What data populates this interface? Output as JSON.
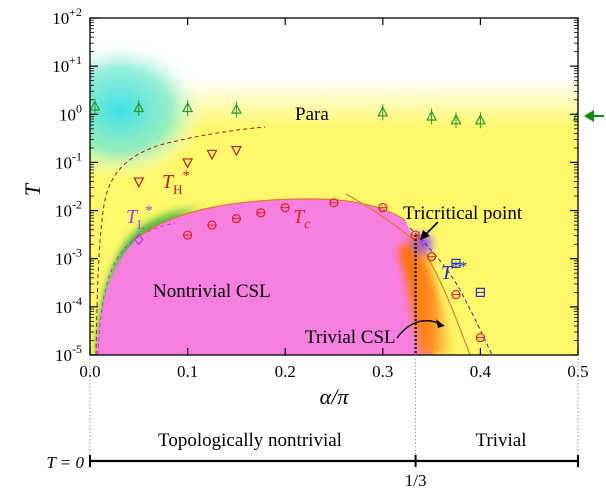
{
  "chart_data": {
    "type": "scatter",
    "xlabel": "α/π",
    "ylabel": "T",
    "xlim": [
      0,
      0.5
    ],
    "ylim_log10": [
      -5,
      2
    ],
    "yscale": "log",
    "x_ticks": [
      "0.0",
      "0.1",
      "0.2",
      "0.3",
      "0.4",
      "0.5"
    ],
    "x_tick_values": [
      0,
      0.1,
      0.2,
      0.3,
      0.4,
      0.5
    ],
    "y_ticks": [
      {
        "value": 100,
        "base": "10",
        "exp": "+2"
      },
      {
        "value": 10,
        "base": "10",
        "exp": "+1"
      },
      {
        "value": 1,
        "base": "10",
        "exp": "0"
      },
      {
        "value": 0.1,
        "base": "10",
        "exp": "-1"
      },
      {
        "value": 0.01,
        "base": "10",
        "exp": "-2"
      },
      {
        "value": 0.001,
        "base": "10",
        "exp": "-3"
      },
      {
        "value": 0.0001,
        "base": "10",
        "exp": "-4"
      },
      {
        "value": 1e-05,
        "base": "10",
        "exp": "-5"
      }
    ],
    "colors": {
      "para_cyan": "#40e0e8",
      "yellow": "#fff86a",
      "pink": "#f77fe0",
      "green": "#3cb043",
      "orange": "#ff7a10",
      "purple": "#8a2be2",
      "tc_red": "#e02020",
      "th_darkred": "#b02020",
      "tl_purple": "#a040e0",
      "tss_blue": "#2030c0",
      "para_green": "#2a9a2a",
      "arrow_green": "#118811"
    },
    "series": [
      {
        "key": "para",
        "marker": "triangle-up",
        "color": "#2a9a2a",
        "points": [
          {
            "x": 0.005,
            "y": 1.45
          },
          {
            "x": 0.05,
            "y": 1.35
          },
          {
            "x": 0.1,
            "y": 1.35
          },
          {
            "x": 0.15,
            "y": 1.25
          },
          {
            "x": 0.3,
            "y": 1.1
          },
          {
            "x": 0.35,
            "y": 0.9
          },
          {
            "x": 0.375,
            "y": 0.75
          },
          {
            "x": 0.4,
            "y": 0.75
          },
          {
            "x": 0.5,
            "y": 0.9
          }
        ]
      },
      {
        "key": "t_h",
        "marker": "triangle-down",
        "color": "#b02020",
        "points": [
          {
            "x": 0.05,
            "y": 0.04
          },
          {
            "x": 0.1,
            "y": 0.1
          },
          {
            "x": 0.125,
            "y": 0.15
          },
          {
            "x": 0.15,
            "y": 0.18
          }
        ]
      },
      {
        "key": "t_l",
        "marker": "diamond",
        "color": "#a040e0",
        "points": [
          {
            "x": 0.05,
            "y": 0.0025
          }
        ]
      },
      {
        "key": "t_c",
        "marker": "circle",
        "color": "#e02020",
        "points": [
          {
            "x": 0.1,
            "y": 0.0031
          },
          {
            "x": 0.125,
            "y": 0.005
          },
          {
            "x": 0.15,
            "y": 0.0068
          },
          {
            "x": 0.175,
            "y": 0.009
          },
          {
            "x": 0.2,
            "y": 0.0115
          },
          {
            "x": 0.25,
            "y": 0.0145
          },
          {
            "x": 0.3,
            "y": 0.0115
          },
          {
            "x": 0.3333,
            "y": 0.0031
          },
          {
            "x": 0.35,
            "y": 0.0011
          },
          {
            "x": 0.375,
            "y": 0.00018
          },
          {
            "x": 0.4,
            "y": 2.3e-05
          }
        ]
      },
      {
        "key": "t_star_star",
        "marker": "square",
        "color": "#2030c0",
        "points": [
          {
            "x": 0.375,
            "y": 0.0008
          },
          {
            "x": 0.4,
            "y": 0.0002
          }
        ]
      }
    ],
    "annotations": {
      "para": "Para",
      "nontrivial_csl": "Nontrivial CSL",
      "trivial_csl": "Trivial CSL",
      "tricritical_point": "Tricritical point",
      "t_h_main": "T",
      "t_h_sub": "H",
      "t_h_sup": "*",
      "t_l_main": "T",
      "t_l_sub": "L",
      "t_l_sup": "*",
      "t_c_main": "T",
      "t_c_sub": "c",
      "t_ss_main": "T",
      "t_ss_sup": "**"
    },
    "bottom_axis": {
      "t_zero_label": "T = 0",
      "topologically_nontrivial": "Topologically nontrivial",
      "trivial": "Trivial",
      "one_third": "1/3"
    }
  }
}
